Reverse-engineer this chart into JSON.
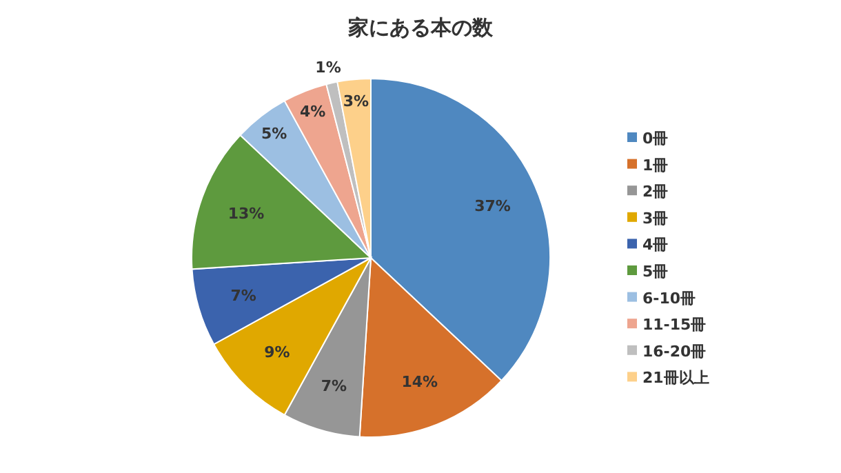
{
  "chart_data": {
    "type": "pie",
    "title": "家にある本の数",
    "categories": [
      "0冊",
      "1冊",
      "2冊",
      "3冊",
      "4冊",
      "5冊",
      "6-10冊",
      "11-15冊",
      "16-20冊",
      "21冊以上"
    ],
    "values": [
      37,
      14,
      7,
      9,
      7,
      13,
      5,
      4,
      1,
      3
    ],
    "colors": [
      "#4f88c0",
      "#d6712b",
      "#969696",
      "#e0a800",
      "#3b63ad",
      "#5e9a3e",
      "#9cbfe2",
      "#eea58f",
      "#bfbfbf",
      "#fdd08a"
    ],
    "value_labels": [
      "37%",
      "14%",
      "7%",
      "9%",
      "7%",
      "13%",
      "5%",
      "4%",
      "1%",
      "3%"
    ],
    "legend": "right"
  }
}
